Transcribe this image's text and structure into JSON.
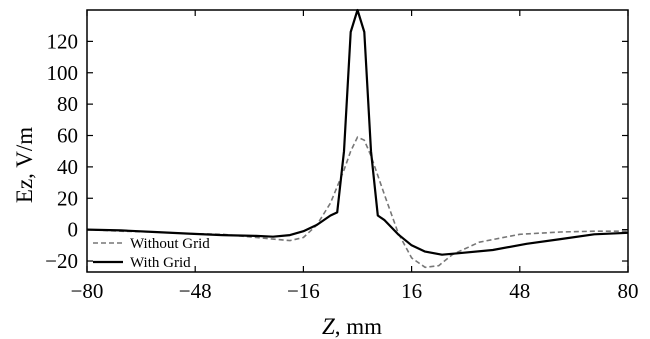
{
  "chart_data": {
    "type": "line",
    "xlabel_italic": "Z",
    "xlabel_rest": ", mm",
    "ylabel": "Ez,  V/m",
    "xlim": [
      -80,
      80
    ],
    "ylim": [
      -27,
      140
    ],
    "x_ticks": [
      -80,
      -48,
      -16,
      16,
      48,
      80
    ],
    "x_tick_labels": [
      "−80",
      "−48",
      "−16",
      "16",
      "48",
      "80"
    ],
    "y_ticks": [
      -20,
      0,
      20,
      40,
      60,
      80,
      100,
      120
    ],
    "y_tick_labels": [
      "−20",
      "0",
      "20",
      "40",
      "60",
      "80",
      "100",
      "120"
    ],
    "grid": false,
    "legend_position": "bottom-left",
    "series": [
      {
        "name": "Without Grid",
        "style": "dashed",
        "color": "#777777",
        "x": [
          -80,
          -70,
          -60,
          -50,
          -40,
          -30,
          -25,
          -20,
          -16,
          -12,
          -8,
          -4,
          -2,
          0,
          2,
          4,
          8,
          12,
          16,
          20,
          24,
          28,
          36,
          48,
          60,
          70,
          80
        ],
        "y": [
          0,
          -1,
          -1.5,
          -2.5,
          -3,
          -5,
          -6,
          -7,
          -5,
          3,
          17,
          38,
          50,
          59,
          57,
          47,
          22,
          -2,
          -18,
          -24,
          -23,
          -16,
          -8,
          -3,
          -1.5,
          -1,
          -1
        ]
      },
      {
        "name": "With Grid",
        "style": "solid",
        "color": "#000000",
        "x": [
          -80,
          -70,
          -60,
          -50,
          -40,
          -30,
          -25,
          -20,
          -16,
          -12,
          -8,
          -6,
          -4,
          -2,
          0,
          2,
          4,
          6,
          8,
          12,
          16,
          20,
          25,
          30,
          40,
          50,
          60,
          70,
          80
        ],
        "y": [
          0,
          -0.5,
          -1.5,
          -2.5,
          -3.5,
          -4,
          -4.5,
          -3.5,
          -1,
          3,
          9,
          11,
          50,
          126,
          140,
          126,
          50,
          9,
          6,
          -3,
          -10,
          -14,
          -16,
          -15,
          -13,
          -9,
          -6,
          -3,
          -2
        ]
      }
    ]
  }
}
